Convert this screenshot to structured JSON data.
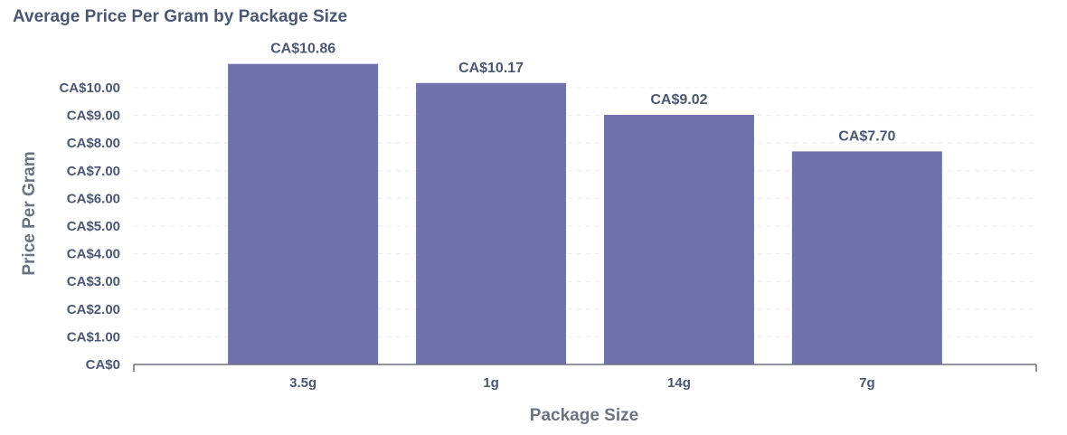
{
  "chart_data": {
    "type": "bar",
    "title": "Average Price Per Gram by Package Size",
    "xlabel": "Package Size",
    "ylabel": "Price Per Gram",
    "categories": [
      "3.5g",
      "1g",
      "14g",
      "7g"
    ],
    "values": [
      10.86,
      10.17,
      9.02,
      7.7
    ],
    "value_labels": [
      "CA$10.86",
      "CA$10.17",
      "CA$9.02",
      "CA$7.70"
    ],
    "ylim": [
      0,
      11
    ],
    "yticks": [
      0,
      1,
      2,
      3,
      4,
      5,
      6,
      7,
      8,
      9,
      10
    ],
    "ytick_labels": [
      "CA$0",
      "CA$1.00",
      "CA$2.00",
      "CA$3.00",
      "CA$4.00",
      "CA$5.00",
      "CA$6.00",
      "CA$7.00",
      "CA$8.00",
      "CA$9.00",
      "CA$10.00"
    ],
    "grid": true,
    "legend": "none",
    "colors": {
      "bar": "#7172ad",
      "text": "#4c5773",
      "axis": "#6b7280",
      "grid": "#ececec"
    }
  }
}
